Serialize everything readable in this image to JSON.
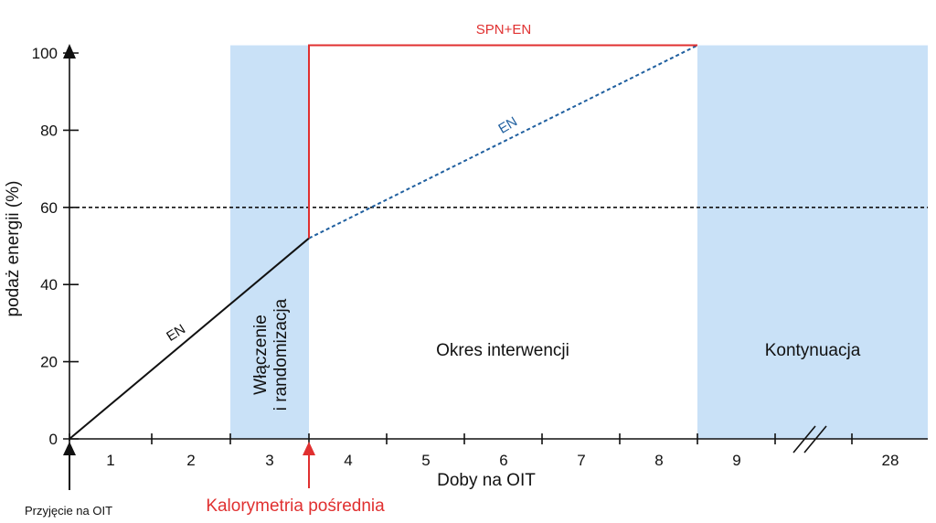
{
  "chart_data": {
    "type": "line",
    "xlabel": "Doby na OIT",
    "ylabel": "podaż energii (%)",
    "ylim": [
      0,
      100
    ],
    "yticks": [
      0,
      20,
      40,
      60,
      80,
      100
    ],
    "xticks": [
      "1",
      "2",
      "3",
      "4",
      "5",
      "6",
      "7",
      "8",
      "9",
      "28"
    ],
    "axis_break": "between 9 and 28",
    "reference_line": {
      "y": 60,
      "style": "dashed"
    },
    "bands": [
      {
        "label": "Włączenie\ni randomizacja",
        "from_day": 3,
        "to_day": 3,
        "color": "#c9e1f7"
      },
      {
        "label": "Kontynuacja",
        "from_day": 9,
        "to_day": 28,
        "color": "#c9e1f7"
      }
    ],
    "region_labels": [
      {
        "label": "Okres interwencji",
        "day_start": 4,
        "day_end": 8
      }
    ],
    "series": [
      {
        "name": "EN",
        "style": "solid",
        "color": "#111111",
        "points": [
          {
            "day_boundary": 0,
            "y": 0
          },
          {
            "day_boundary": 3,
            "y": 52
          }
        ]
      },
      {
        "name": "EN",
        "style": "dashed",
        "color": "#1f5f9f",
        "points": [
          {
            "day_boundary": 3,
            "y": 52
          },
          {
            "day_boundary": 8,
            "y": 102
          }
        ]
      },
      {
        "name": "SPN+EN",
        "style": "solid",
        "color": "#e03030",
        "points": [
          {
            "day_boundary": 3,
            "y": 52
          },
          {
            "day_boundary": 3,
            "y": 102
          },
          {
            "day_boundary": 8,
            "y": 102
          }
        ]
      }
    ],
    "annotations": {
      "left_arrow": "Przyjęcie na OIT",
      "red_arrow": "Kalorymetria pośrednia"
    },
    "colors": {
      "band": "#c9e1f7",
      "spn": "#e03030",
      "en_dashed": "#1f5f9f",
      "axis": "#111111"
    }
  }
}
